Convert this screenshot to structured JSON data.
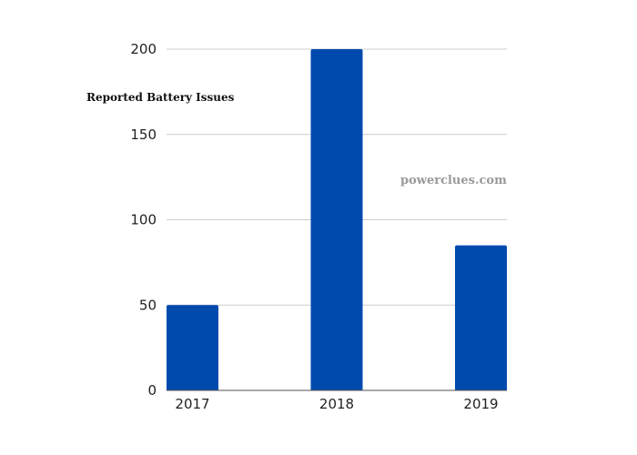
{
  "chart_data": {
    "type": "bar",
    "categories": [
      "2017",
      "2018",
      "2019"
    ],
    "values": [
      50,
      200,
      85
    ],
    "title": "",
    "xlabel": "",
    "ylabel": "Reported Battery Issues",
    "ylim": [
      0,
      200
    ],
    "yticks": [
      0,
      50,
      100,
      150,
      200
    ],
    "grid": true,
    "legend": "none",
    "bar_color": "#004AAD",
    "grid_color": "#cccccc"
  },
  "watermark": "powerclues.com"
}
